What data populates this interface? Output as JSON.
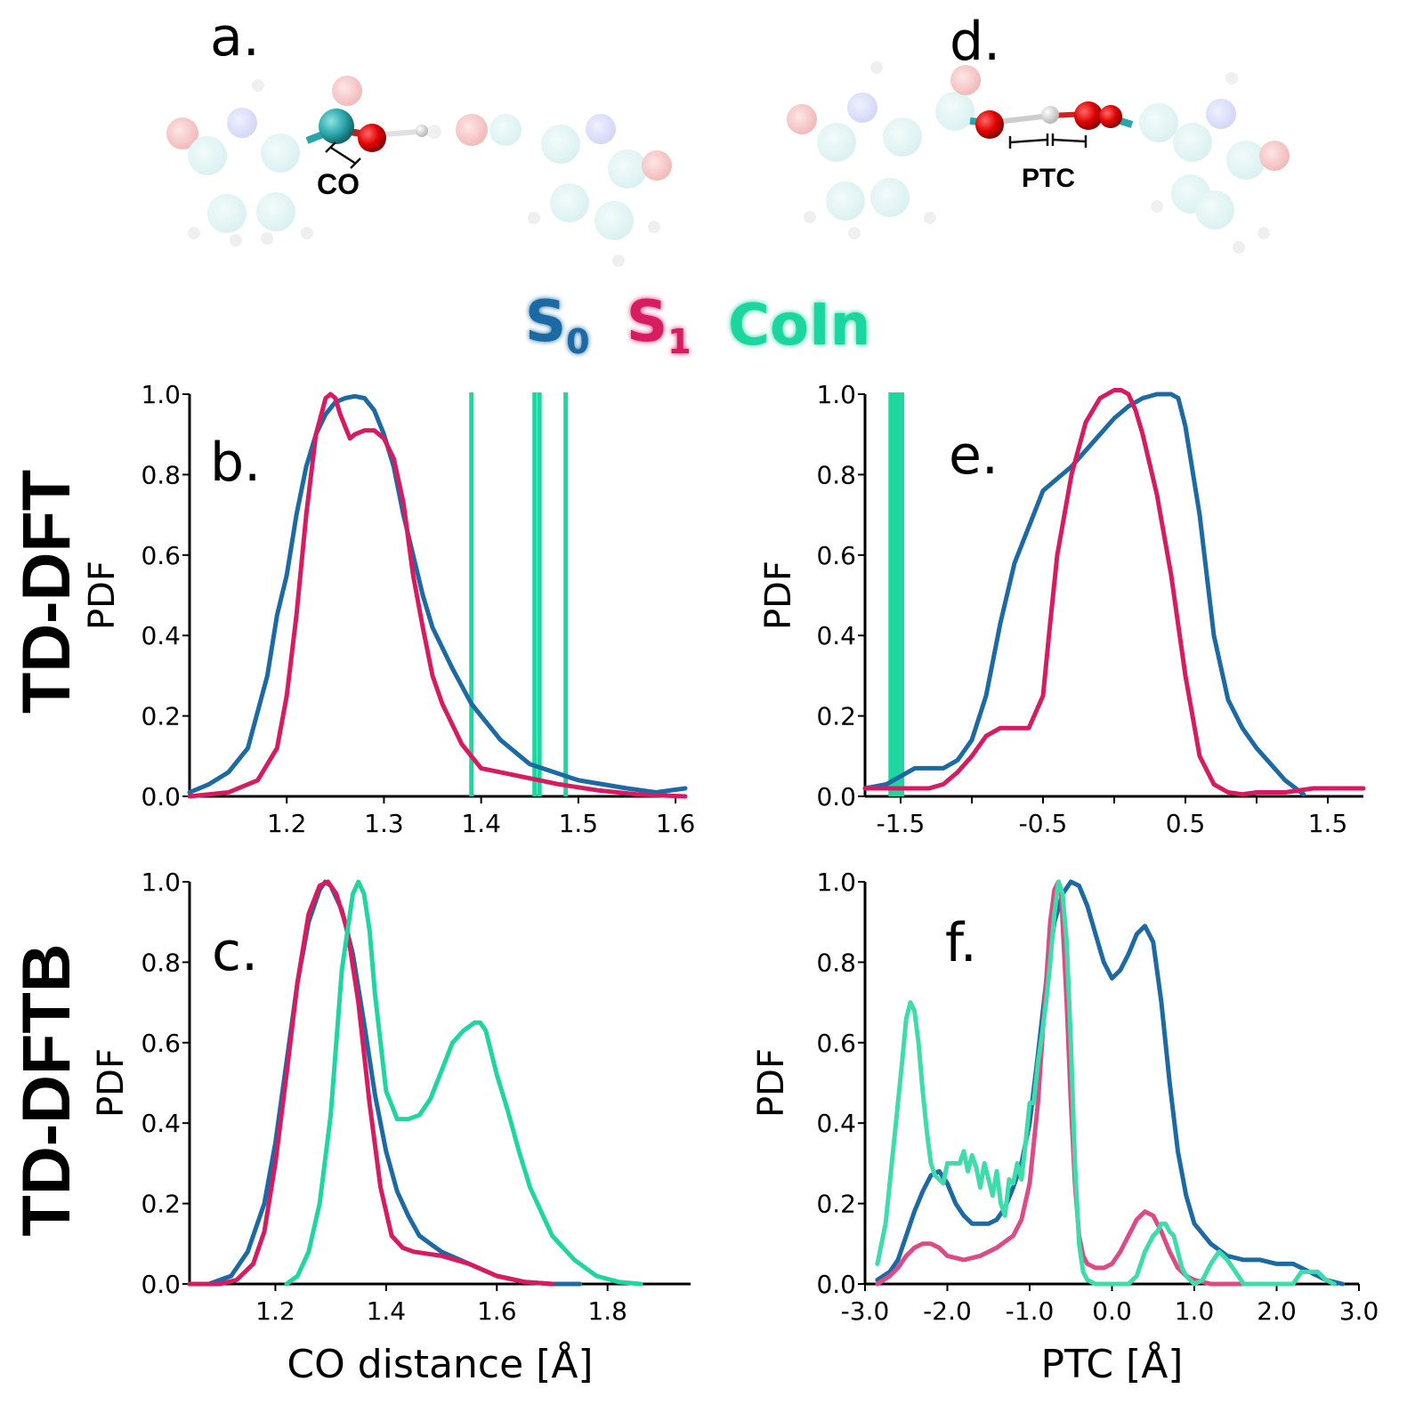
{
  "colors": {
    "S0": "#1b6aa3",
    "S1": "#d81b60",
    "CoIn": "#1fd6a0",
    "CoIn_soft": "#3ddcaa",
    "S1_soft": "#dd4b86"
  },
  "row_labels": {
    "top": "TD-DFT",
    "bottom": "TD-DFTB"
  },
  "legend": [
    {
      "name": "S",
      "sub": "0",
      "color": "#1b6aa3"
    },
    {
      "name": "S",
      "sub": "1",
      "color": "#d81b60"
    },
    {
      "name": "CoIn",
      "sub": "",
      "color": "#1fd6a0"
    }
  ],
  "molecules": {
    "a": {
      "panel_label": "a.",
      "annotation": "CO"
    },
    "d": {
      "panel_label": "d.",
      "annotation": "PTC"
    }
  },
  "chart_data": [
    {
      "id": "b",
      "panel_label": "b.",
      "type": "line",
      "xlabel": "",
      "ylabel": "PDF",
      "xlim": [
        1.1,
        1.61
      ],
      "ylim": [
        0,
        1.0
      ],
      "xticks": [
        1.2,
        1.3,
        1.4,
        1.5,
        1.6
      ],
      "xticklabels": [
        "1.2",
        "1.3",
        "1.4",
        "1.5",
        "1.6"
      ],
      "yticks": [
        0.0,
        0.2,
        0.4,
        0.6,
        0.8,
        1.0
      ],
      "yticklabels": [
        "0.0",
        "0.2",
        "0.4",
        "0.6",
        "0.8",
        "1.0"
      ],
      "series": [
        {
          "name": "S0",
          "color": "#1b6aa3",
          "x": [
            1.1,
            1.12,
            1.14,
            1.16,
            1.18,
            1.19,
            1.2,
            1.21,
            1.22,
            1.23,
            1.24,
            1.25,
            1.26,
            1.27,
            1.28,
            1.29,
            1.3,
            1.31,
            1.32,
            1.33,
            1.34,
            1.35,
            1.37,
            1.39,
            1.42,
            1.45,
            1.5,
            1.55,
            1.58,
            1.61
          ],
          "y": [
            0.01,
            0.03,
            0.06,
            0.12,
            0.3,
            0.45,
            0.55,
            0.7,
            0.82,
            0.9,
            0.95,
            0.98,
            0.99,
            0.995,
            0.99,
            0.96,
            0.9,
            0.82,
            0.7,
            0.6,
            0.5,
            0.42,
            0.32,
            0.23,
            0.14,
            0.08,
            0.04,
            0.02,
            0.01,
            0.02
          ]
        },
        {
          "name": "S1",
          "color": "#d81b60",
          "x": [
            1.1,
            1.14,
            1.17,
            1.19,
            1.2,
            1.21,
            1.22,
            1.23,
            1.24,
            1.245,
            1.25,
            1.255,
            1.26,
            1.265,
            1.27,
            1.28,
            1.29,
            1.3,
            1.31,
            1.32,
            1.33,
            1.34,
            1.35,
            1.36,
            1.38,
            1.4,
            1.44,
            1.48,
            1.52,
            1.56,
            1.61
          ],
          "y": [
            0.0,
            0.01,
            0.04,
            0.12,
            0.25,
            0.45,
            0.7,
            0.9,
            0.99,
            1.0,
            0.99,
            0.95,
            0.92,
            0.89,
            0.9,
            0.91,
            0.91,
            0.89,
            0.84,
            0.73,
            0.55,
            0.42,
            0.3,
            0.23,
            0.13,
            0.07,
            0.05,
            0.03,
            0.015,
            0.005,
            0.0
          ]
        }
      ],
      "vlines": {
        "name": "CoIn",
        "color": "#1fd6a0",
        "x": [
          1.39,
          1.455,
          1.46,
          1.487
        ]
      }
    },
    {
      "id": "e",
      "panel_label": "e.",
      "type": "line",
      "xlabel": "",
      "ylabel": "PDF",
      "xlim": [
        -1.75,
        1.75
      ],
      "ylim": [
        0,
        1.0
      ],
      "xticks": [
        -1.5,
        -0.5,
        0.5,
        1.5
      ],
      "xticklabels": [
        "-1.5",
        "-0.5",
        "0.5",
        "1.5"
      ],
      "minor_xticks": [
        -1.0,
        0.0,
        1.0
      ],
      "yticks": [
        0.0,
        0.2,
        0.4,
        0.6,
        0.8,
        1.0
      ],
      "yticklabels": [
        "0.0",
        "0.2",
        "0.4",
        "0.6",
        "0.8",
        "1.0"
      ],
      "series": [
        {
          "name": "S0",
          "color": "#1b6aa3",
          "x": [
            -1.75,
            -1.6,
            -1.5,
            -1.4,
            -1.3,
            -1.2,
            -1.1,
            -1.0,
            -0.9,
            -0.8,
            -0.7,
            -0.6,
            -0.5,
            -0.4,
            -0.3,
            -0.2,
            -0.1,
            0.0,
            0.1,
            0.2,
            0.3,
            0.4,
            0.45,
            0.5,
            0.6,
            0.7,
            0.8,
            0.9,
            1.0,
            1.1,
            1.2,
            1.33
          ],
          "y": [
            0.02,
            0.03,
            0.05,
            0.07,
            0.07,
            0.07,
            0.09,
            0.14,
            0.25,
            0.43,
            0.58,
            0.67,
            0.76,
            0.79,
            0.82,
            0.86,
            0.9,
            0.94,
            0.97,
            0.99,
            1.0,
            1.0,
            0.99,
            0.92,
            0.7,
            0.4,
            0.24,
            0.17,
            0.12,
            0.08,
            0.04,
            0.005
          ]
        },
        {
          "name": "S1",
          "color": "#d81b60",
          "x": [
            -1.75,
            -1.5,
            -1.3,
            -1.2,
            -1.1,
            -1.0,
            -0.9,
            -0.8,
            -0.7,
            -0.6,
            -0.5,
            -0.45,
            -0.4,
            -0.3,
            -0.2,
            -0.1,
            0.0,
            0.05,
            0.1,
            0.15,
            0.2,
            0.3,
            0.4,
            0.5,
            0.6,
            0.7,
            0.8,
            0.9,
            1.0,
            1.2,
            1.4,
            1.6,
            1.75
          ],
          "y": [
            0.02,
            0.02,
            0.02,
            0.03,
            0.06,
            0.1,
            0.15,
            0.17,
            0.17,
            0.17,
            0.25,
            0.43,
            0.6,
            0.8,
            0.93,
            0.99,
            1.01,
            1.01,
            1.0,
            0.96,
            0.9,
            0.75,
            0.55,
            0.3,
            0.1,
            0.03,
            0.01,
            0.005,
            0.01,
            0.01,
            0.02,
            0.02,
            0.02
          ]
        }
      ],
      "vlines": {
        "name": "CoIn",
        "color": "#1fd6a0",
        "x": [
          -1.57,
          -1.55,
          -1.52,
          -1.49
        ]
      }
    },
    {
      "id": "c",
      "panel_label": "c.",
      "type": "line",
      "xlabel": "CO distance [Å]",
      "ylabel": "PDF",
      "xlim": [
        1.045,
        1.95
      ],
      "ylim": [
        0,
        1.0
      ],
      "xticks": [
        1.2,
        1.4,
        1.6,
        1.8
      ],
      "xticklabels": [
        "1.2",
        "1.4",
        "1.6",
        "1.8"
      ],
      "yticks": [
        0.0,
        0.2,
        0.4,
        0.6,
        0.8,
        1.0
      ],
      "yticklabels": [
        "0.0",
        "0.2",
        "0.4",
        "0.6",
        "0.8",
        "1.0"
      ],
      "series": [
        {
          "name": "S0",
          "color": "#1b6aa3",
          "x": [
            1.045,
            1.08,
            1.1,
            1.12,
            1.15,
            1.18,
            1.2,
            1.22,
            1.24,
            1.26,
            1.28,
            1.29,
            1.3,
            1.32,
            1.34,
            1.36,
            1.38,
            1.4,
            1.42,
            1.44,
            1.46,
            1.48,
            1.5,
            1.55,
            1.6,
            1.65,
            1.7,
            1.75
          ],
          "y": [
            0.0,
            0.0,
            0.01,
            0.02,
            0.08,
            0.2,
            0.35,
            0.55,
            0.75,
            0.9,
            0.98,
            1.0,
            0.99,
            0.93,
            0.82,
            0.65,
            0.47,
            0.33,
            0.23,
            0.17,
            0.12,
            0.1,
            0.08,
            0.05,
            0.02,
            0.005,
            0.0,
            0.0
          ]
        },
        {
          "name": "S1",
          "color": "#d81b60",
          "x": [
            1.045,
            1.1,
            1.13,
            1.16,
            1.18,
            1.2,
            1.22,
            1.24,
            1.26,
            1.28,
            1.295,
            1.31,
            1.33,
            1.35,
            1.37,
            1.39,
            1.41,
            1.43,
            1.45,
            1.5,
            1.55,
            1.6,
            1.65,
            1.7
          ],
          "y": [
            0.0,
            0.0,
            0.01,
            0.05,
            0.13,
            0.3,
            0.52,
            0.75,
            0.92,
            0.99,
            1.0,
            0.97,
            0.88,
            0.7,
            0.45,
            0.24,
            0.12,
            0.09,
            0.08,
            0.07,
            0.05,
            0.02,
            0.005,
            0.0
          ]
        },
        {
          "name": "CoIn",
          "color": "#1fd6a0",
          "x": [
            1.22,
            1.24,
            1.26,
            1.28,
            1.3,
            1.32,
            1.34,
            1.35,
            1.36,
            1.37,
            1.38,
            1.4,
            1.42,
            1.44,
            1.46,
            1.48,
            1.5,
            1.52,
            1.54,
            1.56,
            1.57,
            1.58,
            1.6,
            1.62,
            1.64,
            1.66,
            1.7,
            1.74,
            1.78,
            1.82,
            1.86
          ],
          "y": [
            0.0,
            0.02,
            0.08,
            0.2,
            0.42,
            0.78,
            0.97,
            1.0,
            0.97,
            0.88,
            0.72,
            0.48,
            0.41,
            0.41,
            0.42,
            0.46,
            0.53,
            0.6,
            0.63,
            0.65,
            0.65,
            0.63,
            0.52,
            0.43,
            0.33,
            0.24,
            0.12,
            0.06,
            0.02,
            0.005,
            0.0
          ]
        }
      ]
    },
    {
      "id": "f",
      "panel_label": "f.",
      "type": "line",
      "xlabel": "PTC [Å]",
      "ylabel": "PDF",
      "xlim": [
        -3.0,
        3.0
      ],
      "ylim": [
        0,
        1.0
      ],
      "xticks": [
        -3.0,
        -2.0,
        -1.0,
        0.0,
        1.0,
        2.0,
        3.0
      ],
      "xticklabels": [
        "-3.0",
        "-2.0",
        "-1.0",
        "0.0",
        "1.0",
        "2.0",
        "3.0"
      ],
      "yticks": [
        0.0,
        0.2,
        0.4,
        0.6,
        0.8,
        1.0
      ],
      "yticklabels": [
        "0.0",
        "0.2",
        "0.4",
        "0.6",
        "0.8",
        "1.0"
      ],
      "series": [
        {
          "name": "S0",
          "color": "#1b6aa3",
          "x": [
            -2.85,
            -2.7,
            -2.6,
            -2.5,
            -2.4,
            -2.3,
            -2.2,
            -2.1,
            -2.0,
            -1.9,
            -1.8,
            -1.7,
            -1.6,
            -1.5,
            -1.4,
            -1.3,
            -1.2,
            -1.1,
            -1.0,
            -0.9,
            -0.8,
            -0.7,
            -0.6,
            -0.5,
            -0.4,
            -0.3,
            -0.2,
            -0.1,
            0.0,
            0.1,
            0.2,
            0.3,
            0.4,
            0.5,
            0.6,
            0.7,
            0.8,
            0.9,
            1.0,
            1.2,
            1.4,
            1.6,
            1.8,
            2.0,
            2.2,
            2.4,
            2.6,
            2.8
          ],
          "y": [
            0.01,
            0.03,
            0.06,
            0.12,
            0.18,
            0.23,
            0.27,
            0.28,
            0.25,
            0.2,
            0.17,
            0.15,
            0.15,
            0.15,
            0.16,
            0.19,
            0.24,
            0.3,
            0.4,
            0.57,
            0.75,
            0.9,
            0.97,
            1.0,
            0.99,
            0.94,
            0.87,
            0.8,
            0.76,
            0.78,
            0.82,
            0.87,
            0.89,
            0.85,
            0.7,
            0.5,
            0.33,
            0.22,
            0.15,
            0.1,
            0.07,
            0.06,
            0.06,
            0.05,
            0.05,
            0.03,
            0.01,
            0.0
          ]
        },
        {
          "name": "S1",
          "color": "#dd4b86",
          "x": [
            -2.85,
            -2.7,
            -2.6,
            -2.5,
            -2.4,
            -2.3,
            -2.2,
            -2.1,
            -2.0,
            -1.8,
            -1.6,
            -1.4,
            -1.2,
            -1.1,
            -1.0,
            -0.9,
            -0.8,
            -0.75,
            -0.7,
            -0.65,
            -0.62,
            -0.6,
            -0.55,
            -0.5,
            -0.45,
            -0.4,
            -0.35,
            -0.3,
            -0.2,
            -0.1,
            0.0,
            0.1,
            0.2,
            0.3,
            0.4,
            0.5,
            0.6,
            0.7,
            0.8,
            0.9,
            1.0,
            1.1,
            1.2,
            1.4,
            1.6,
            1.8
          ],
          "y": [
            0.0,
            0.02,
            0.04,
            0.07,
            0.09,
            0.1,
            0.1,
            0.09,
            0.07,
            0.06,
            0.07,
            0.09,
            0.12,
            0.16,
            0.25,
            0.45,
            0.75,
            0.9,
            0.98,
            1.0,
            0.98,
            0.9,
            0.7,
            0.45,
            0.25,
            0.12,
            0.07,
            0.05,
            0.04,
            0.04,
            0.05,
            0.08,
            0.12,
            0.16,
            0.18,
            0.17,
            0.13,
            0.08,
            0.04,
            0.02,
            0.01,
            0.005,
            0.0,
            0.0,
            0.0,
            0.0
          ]
        },
        {
          "name": "CoIn",
          "color": "#3ddcaa",
          "x": [
            -2.85,
            -2.75,
            -2.65,
            -2.55,
            -2.5,
            -2.45,
            -2.4,
            -2.35,
            -2.3,
            -2.25,
            -2.2,
            -2.15,
            -2.1,
            -2.05,
            -2.0,
            -1.95,
            -1.9,
            -1.85,
            -1.8,
            -1.75,
            -1.7,
            -1.65,
            -1.6,
            -1.55,
            -1.5,
            -1.45,
            -1.4,
            -1.35,
            -1.3,
            -1.25,
            -1.2,
            -1.15,
            -1.1,
            -1.05,
            -1.0,
            -0.95,
            -0.9,
            -0.85,
            -0.8,
            -0.75,
            -0.7,
            -0.65,
            -0.6,
            -0.55,
            -0.5,
            -0.45,
            -0.4,
            -0.35,
            -0.3,
            -0.2,
            -0.1,
            0.0,
            0.1,
            0.2,
            0.25,
            0.3,
            0.35,
            0.4,
            0.45,
            0.5,
            0.55,
            0.6,
            0.65,
            0.7,
            0.75,
            0.8,
            0.85,
            0.9,
            1.0,
            1.1,
            1.2,
            1.3,
            1.4,
            1.5,
            1.6,
            1.7,
            1.8,
            2.0,
            2.2,
            2.3,
            2.5,
            2.6,
            2.7
          ],
          "y": [
            0.05,
            0.15,
            0.35,
            0.55,
            0.66,
            0.7,
            0.68,
            0.6,
            0.48,
            0.38,
            0.3,
            0.27,
            0.26,
            0.25,
            0.3,
            0.3,
            0.3,
            0.3,
            0.33,
            0.28,
            0.32,
            0.29,
            0.24,
            0.3,
            0.26,
            0.22,
            0.28,
            0.2,
            0.17,
            0.26,
            0.25,
            0.3,
            0.26,
            0.35,
            0.45,
            0.45,
            0.55,
            0.62,
            0.7,
            0.8,
            0.92,
            1.0,
            0.97,
            0.85,
            0.6,
            0.3,
            0.1,
            0.03,
            0.01,
            0.0,
            0.0,
            0.0,
            0.0,
            0.0,
            0.01,
            0.02,
            0.05,
            0.08,
            0.1,
            0.12,
            0.13,
            0.15,
            0.15,
            0.13,
            0.12,
            0.08,
            0.04,
            0.02,
            0.0,
            0.01,
            0.05,
            0.08,
            0.06,
            0.03,
            0.0,
            0.0,
            0.0,
            0.0,
            0.0,
            0.03,
            0.03,
            0.01,
            0.0
          ]
        }
      ]
    }
  ]
}
